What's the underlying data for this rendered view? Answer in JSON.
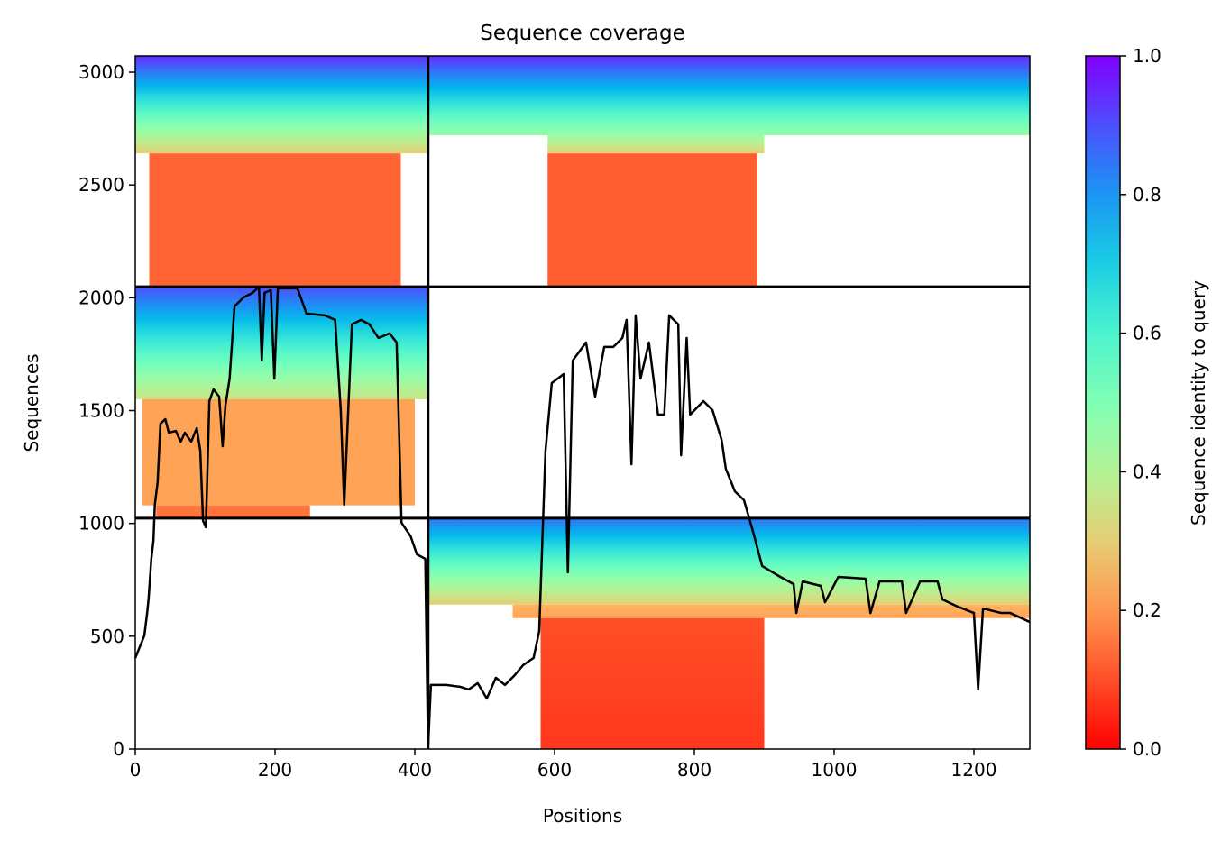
{
  "chart_data": {
    "type": "line",
    "title": "Sequence coverage",
    "x_label": "Positions",
    "y_label": "Sequences",
    "colorbar_label": "Sequence identity to query",
    "colormap": "rainbow_r",
    "xlim": [
      0,
      1280
    ],
    "ylim": [
      0,
      3072
    ],
    "xticks": [
      0,
      200,
      400,
      600,
      800,
      1000,
      1200
    ],
    "yticks": [
      0,
      500,
      1000,
      1500,
      2000,
      2500,
      3000
    ],
    "clim": [
      0,
      1
    ],
    "cticks": [
      {
        "value": 0,
        "label": "0.0"
      },
      0.2,
      0.4,
      0.6,
      0.8,
      {
        "value": 1,
        "label": "1.0"
      }
    ],
    "dividers_x": [
      419
    ],
    "dividers_y": [
      1023,
      2049
    ],
    "blocks": [
      {
        "x": [
          0,
          419
        ],
        "y": [
          2640,
          3072
        ],
        "identity": [
          0.3,
          0.95
        ]
      },
      {
        "x": [
          20,
          380
        ],
        "y": [
          2049,
          2640
        ],
        "identity": [
          0.13,
          0.13
        ]
      },
      {
        "x": [
          419,
          1280
        ],
        "y": [
          2720,
          3072
        ],
        "identity": [
          0.45,
          0.95
        ]
      },
      {
        "x": [
          590,
          900
        ],
        "y": [
          2640,
          2720
        ],
        "identity": [
          0.3,
          0.45
        ]
      },
      {
        "x": [
          590,
          890
        ],
        "y": [
          2049,
          2640
        ],
        "identity": [
          0.12,
          0.12
        ]
      },
      {
        "x": [
          0,
          419
        ],
        "y": [
          1550,
          2049
        ],
        "identity": [
          0.35,
          0.9
        ]
      },
      {
        "x": [
          10,
          400
        ],
        "y": [
          1080,
          1550
        ],
        "identity": [
          0.22,
          0.22
        ]
      },
      {
        "x": [
          30,
          250
        ],
        "y": [
          1023,
          1080
        ],
        "identity": [
          0.15,
          0.15
        ]
      },
      {
        "x": [
          419,
          1280
        ],
        "y": [
          640,
          1023
        ],
        "identity": [
          0.3,
          0.85
        ]
      },
      {
        "x": [
          540,
          1280
        ],
        "y": [
          580,
          640
        ],
        "identity": [
          0.22,
          0.25
        ]
      },
      {
        "x": [
          580,
          900
        ],
        "y": [
          0,
          580
        ],
        "identity": [
          0.07,
          0.1
        ]
      }
    ],
    "color": "#000000",
    "x": [
      0,
      13,
      17,
      19,
      23,
      26,
      28,
      32,
      36,
      43,
      48,
      58,
      65,
      71,
      80,
      88,
      93,
      97,
      101,
      106,
      112,
      120,
      125,
      129,
      135,
      142,
      155,
      168,
      177,
      181,
      185,
      194,
      199,
      204,
      232,
      245,
      271,
      286,
      294,
      299,
      310,
      323,
      335,
      348,
      364,
      374,
      381,
      394,
      403,
      415,
      419,
      423,
      445,
      465,
      477,
      490,
      503,
      516,
      529,
      542,
      555,
      570,
      578,
      587,
      596,
      613,
      619,
      626,
      645,
      658,
      671,
      684,
      697,
      703,
      710,
      716,
      723,
      735,
      748,
      757,
      764,
      777,
      781,
      789,
      794,
      813,
      826,
      839,
      845,
      858,
      871,
      884,
      897,
      923,
      942,
      946,
      955,
      981,
      987,
      1006,
      1045,
      1052,
      1065,
      1097,
      1103,
      1123,
      1148,
      1155,
      1174,
      1200,
      1206,
      1213,
      1239,
      1252,
      1280
    ],
    "values": [
      403,
      503,
      603,
      663,
      843,
      923,
      1083,
      1183,
      1442,
      1462,
      1402,
      1410,
      1362,
      1402,
      1362,
      1422,
      1322,
      1011,
      983,
      1542,
      1594,
      1562,
      1342,
      1522,
      1642,
      1962,
      2002,
      2022,
      2049,
      1722,
      2022,
      2034,
      1642,
      2042,
      2042,
      1930,
      1922,
      1902,
      1502,
      1083,
      1882,
      1902,
      1882,
      1822,
      1842,
      1802,
      1003,
      943,
      863,
      843,
      4,
      284,
      284,
      276,
      264,
      292,
      224,
      316,
      284,
      324,
      372,
      404,
      523,
      1322,
      1622,
      1662,
      783,
      1722,
      1802,
      1562,
      1782,
      1782,
      1822,
      1902,
      1262,
      1922,
      1642,
      1802,
      1482,
      1482,
      1922,
      1882,
      1302,
      1822,
      1482,
      1542,
      1502,
      1370,
      1242,
      1142,
      1103,
      963,
      811,
      763,
      731,
      603,
      743,
      723,
      651,
      763,
      755,
      603,
      743,
      743,
      603,
      743,
      743,
      663,
      635,
      603,
      264,
      623,
      603,
      603,
      563
    ]
  }
}
